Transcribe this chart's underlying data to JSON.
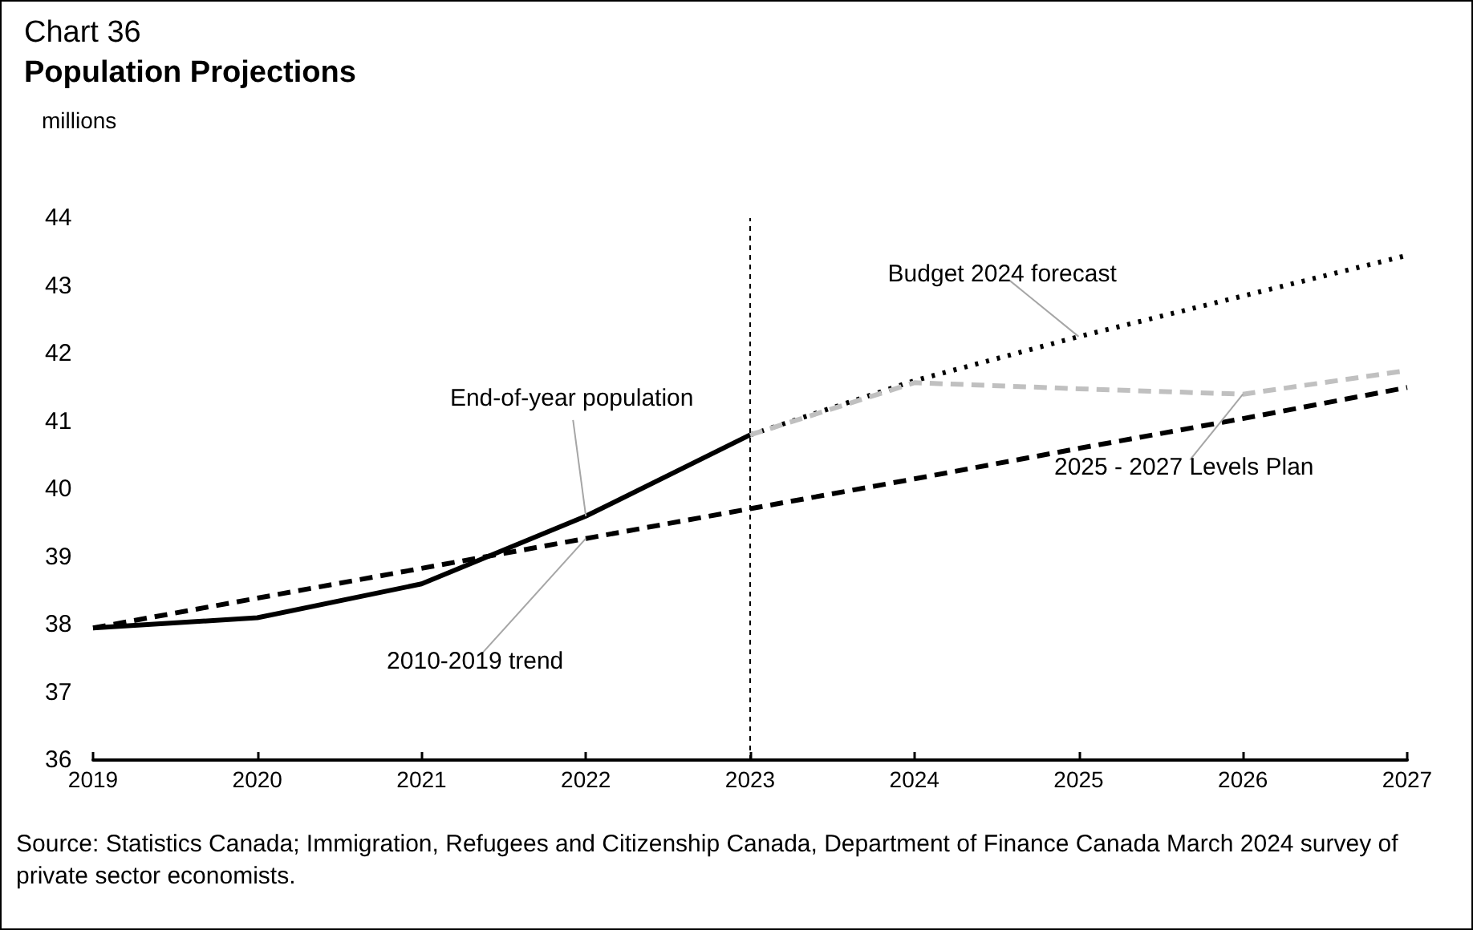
{
  "chart_data": {
    "type": "line",
    "title": "Chart 36",
    "subtitle": "Population Projections",
    "ylabel": "millions",
    "xlim": [
      2019,
      2027
    ],
    "xticks": [
      2019,
      2020,
      2021,
      2022,
      2023,
      2024,
      2025,
      2026,
      2027
    ],
    "ylim": [
      36,
      44
    ],
    "yticks": [
      36,
      37,
      38,
      39,
      40,
      41,
      42,
      43,
      44
    ],
    "grid": false,
    "legend": false,
    "marker": "none",
    "series": [
      {
        "name": "End-of-year population",
        "color": "#000000",
        "line_style": "solid",
        "x": [
          2019,
          2020,
          2021,
          2022,
          2023
        ],
        "values": [
          37.95,
          38.1,
          38.6,
          39.6,
          40.8
        ]
      },
      {
        "name": "2010-2019 trend",
        "color": "#000000",
        "line_style": "dashed",
        "x": [
          2019,
          2020,
          2021,
          2022,
          2023,
          2024,
          2025,
          2026,
          2027
        ],
        "values": [
          37.95,
          38.39,
          38.83,
          39.27,
          39.71,
          40.15,
          40.6,
          41.04,
          41.5
        ]
      },
      {
        "name": "Budget 2024 forecast",
        "color": "#000000",
        "line_style": "dotted",
        "x": [
          2023,
          2024,
          2025,
          2026,
          2027
        ],
        "values": [
          40.8,
          41.6,
          42.25,
          42.85,
          43.45
        ]
      },
      {
        "name": "2025 - 2027 Levels Plan",
        "color": "#c0c0c0",
        "line_style": "dashed",
        "x": [
          2023,
          2024,
          2025,
          2026,
          2027
        ],
        "values": [
          40.8,
          41.57,
          41.48,
          41.4,
          41.75
        ]
      }
    ],
    "ref_lines": [
      {
        "axis": "x",
        "value": 2023,
        "label": null,
        "color": "#000000",
        "line_style": "dashed"
      }
    ],
    "annotations": [
      "Source: Statistics Canada; Immigration, Refugees and Citizenship Canada, Department of Finance Canada March 2024 survey of private sector economists."
    ]
  }
}
